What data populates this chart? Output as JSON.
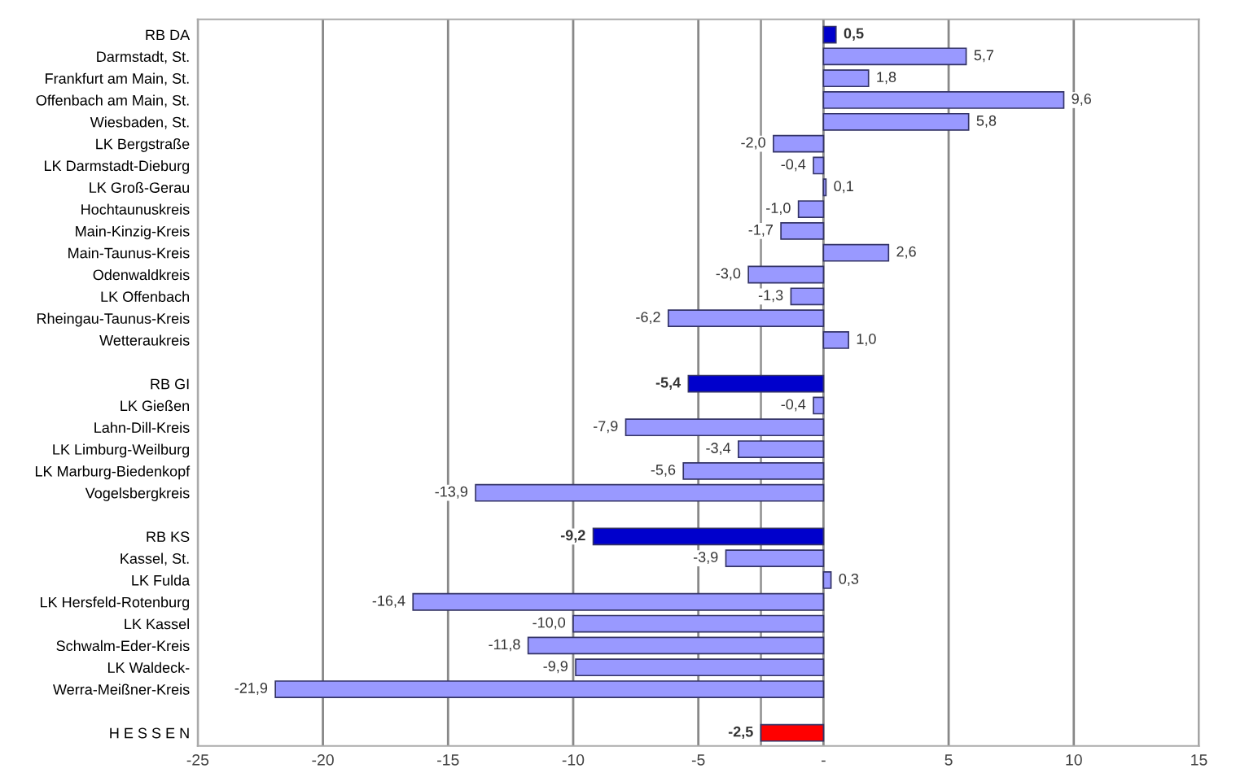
{
  "chart_data": {
    "type": "bar",
    "orientation": "horizontal",
    "categories": [
      "RB DA",
      "Darmstadt, St.",
      "Frankfurt am Main, St.",
      "Offenbach am Main, St.",
      "Wiesbaden, St.",
      "LK Bergstraße",
      "LK Darmstadt-Dieburg",
      "LK Groß-Gerau",
      "Hochtaunuskreis",
      "Main-Kinzig-Kreis",
      "Main-Taunus-Kreis",
      "Odenwaldkreis",
      "LK Offenbach",
      "Rheingau-Taunus-Kreis",
      "Wetteraukreis",
      null,
      "RB GI",
      "LK Gießen",
      "Lahn-Dill-Kreis",
      "LK Limburg-Weilburg",
      "LK Marburg-Biedenkopf",
      "Vogelsbergkreis",
      null,
      "RB KS",
      "Kassel, St.",
      "LK Fulda",
      "LK Hersfeld-Rotenburg",
      "LK Kassel",
      "Schwalm-Eder-Kreis",
      "LK Waldeck-",
      "Werra-Meißner-Kreis",
      null,
      "H E S S E N"
    ],
    "values": [
      0.5,
      5.7,
      1.8,
      9.6,
      5.8,
      -2.0,
      -0.4,
      0.1,
      -1.0,
      -1.7,
      2.6,
      -3.0,
      -1.3,
      -6.2,
      1.0,
      null,
      -5.4,
      -0.4,
      -7.9,
      -3.4,
      -5.6,
      -13.9,
      null,
      -9.2,
      -3.9,
      0.3,
      -16.4,
      -10.0,
      -11.8,
      -9.9,
      -21.9,
      null,
      -2.5
    ],
    "value_labels": [
      "0,5",
      "5,7",
      "1,8",
      "9,6",
      "5,8",
      "-2,0",
      "-0,4",
      "0,1",
      "-1,0",
      "-1,7",
      "2,6",
      "-3,0",
      "-1,3",
      "-6,2",
      "1,0",
      null,
      "-5,4",
      "-0,4",
      "-7,9",
      "-3,4",
      "-5,6",
      "-13,9",
      null,
      "-9,2",
      "-3,9",
      "0,3",
      "-16,4",
      "-10,0",
      "-11,8",
      "-9,9",
      "-21,9",
      null,
      "-2,5"
    ],
    "colors": [
      "#0000cc",
      "#9999ff",
      "#9999ff",
      "#9999ff",
      "#9999ff",
      "#9999ff",
      "#9999ff",
      "#9999ff",
      "#9999ff",
      "#9999ff",
      "#9999ff",
      "#9999ff",
      "#9999ff",
      "#9999ff",
      "#9999ff",
      null,
      "#0000cc",
      "#9999ff",
      "#9999ff",
      "#9999ff",
      "#9999ff",
      "#9999ff",
      null,
      "#0000cc",
      "#9999ff",
      "#9999ff",
      "#9999ff",
      "#9999ff",
      "#9999ff",
      "#9999ff",
      "#9999ff",
      null,
      "#ff0000"
    ],
    "xlim": [
      -25,
      15
    ],
    "xticks": [
      -25,
      -20,
      -15,
      -10,
      -5,
      {
        "value": 0,
        "label": "-"
      },
      5,
      10,
      15
    ],
    "ref_lines": [
      {
        "axis": "x",
        "value": -2.5,
        "color": "#999999"
      }
    ],
    "grid": "x"
  }
}
